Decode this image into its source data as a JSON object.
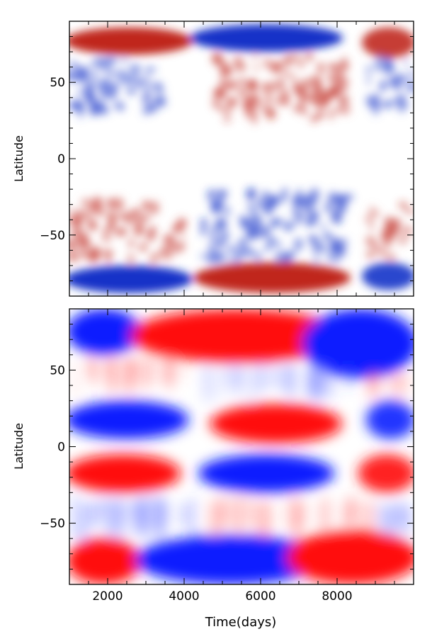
{
  "chart_data": [
    {
      "type": "heatmap",
      "title": "",
      "xlabel": "",
      "ylabel": "Latitude",
      "xlim": [
        1000,
        10000
      ],
      "ylim": [
        -90,
        90
      ],
      "xticks": [
        2000,
        4000,
        6000,
        8000
      ],
      "xtick_labels": [
        "",
        "",
        "",
        ""
      ],
      "yticks": [
        50,
        0,
        -50
      ],
      "ytick_labels": [
        "50",
        "0",
        "−50"
      ],
      "colors": {
        "positive": "#c0281e",
        "negative": "#1432c8",
        "zero": "#ffffff"
      },
      "color_meaning": "diverging red (positive) / blue (negative) field, white near zero",
      "regions": [
        {
          "sign": "+",
          "x": [
            1000,
            4100
          ],
          "lat": [
            68,
            86
          ],
          "strength": 1.0
        },
        {
          "sign": "-",
          "x": [
            4300,
            8000
          ],
          "lat": [
            70,
            88
          ],
          "strength": 1.0
        },
        {
          "sign": "+",
          "x": [
            8700,
            10000
          ],
          "lat": [
            66,
            86
          ],
          "strength": 0.9
        },
        {
          "sign": "-",
          "x": [
            1000,
            3500
          ],
          "lat": [
            30,
            66
          ],
          "strength": 0.6,
          "speckled": true
        },
        {
          "sign": "+",
          "x": [
            4800,
            8300
          ],
          "lat": [
            25,
            68
          ],
          "strength": 0.6,
          "speckled": true
        },
        {
          "sign": "-",
          "x": [
            8800,
            10000
          ],
          "lat": [
            30,
            66
          ],
          "strength": 0.5,
          "speckled": true
        },
        {
          "sign": "+",
          "x": [
            1000,
            4000
          ],
          "lat": [
            -66,
            -28
          ],
          "strength": 0.6,
          "speckled": true
        },
        {
          "sign": "-",
          "x": [
            4500,
            8300
          ],
          "lat": [
            -66,
            -22
          ],
          "strength": 0.6,
          "speckled": true
        },
        {
          "sign": "+",
          "x": [
            8800,
            10000
          ],
          "lat": [
            -66,
            -30
          ],
          "strength": 0.5,
          "speckled": true
        },
        {
          "sign": "-",
          "x": [
            1000,
            4100
          ],
          "lat": [
            -88,
            -70
          ],
          "strength": 1.0
        },
        {
          "sign": "+",
          "x": [
            4400,
            8200
          ],
          "lat": [
            -88,
            -68
          ],
          "strength": 1.0
        },
        {
          "sign": "-",
          "x": [
            8700,
            10000
          ],
          "lat": [
            -86,
            -68
          ],
          "strength": 0.9
        }
      ]
    },
    {
      "type": "heatmap",
      "title": "",
      "xlabel": "Time(days)",
      "ylabel": "Latitude",
      "xlim": [
        1000,
        10000
      ],
      "ylim": [
        -90,
        90
      ],
      "xticks": [
        2000,
        4000,
        6000,
        8000
      ],
      "xtick_labels": [
        "2000",
        "4000",
        "6000",
        "8000"
      ],
      "yticks": [
        50,
        0,
        -50
      ],
      "ytick_labels": [
        "50",
        "0",
        "−50"
      ],
      "colors": {
        "positive": "#ff0a0a",
        "negative": "#0a1eff",
        "zero": "#ffffff"
      },
      "color_meaning": "diverging red (positive) / blue (negative) field, white near zero",
      "regions": [
        {
          "sign": "-",
          "x": [
            1000,
            2800
          ],
          "lat": [
            60,
            90
          ],
          "strength": 1.0
        },
        {
          "sign": "+",
          "x": [
            2800,
            8000
          ],
          "lat": [
            55,
            90
          ],
          "strength": 1.0
        },
        {
          "sign": "-",
          "x": [
            7200,
            10000
          ],
          "lat": [
            45,
            90
          ],
          "strength": 1.0
        },
        {
          "sign": "+",
          "x": [
            1000,
            4200
          ],
          "lat": [
            35,
            60
          ],
          "strength": 0.45,
          "streaky": true
        },
        {
          "sign": "-",
          "x": [
            4300,
            8600
          ],
          "lat": [
            30,
            55
          ],
          "strength": 0.35,
          "streaky": true
        },
        {
          "sign": "+",
          "x": [
            8600,
            10000
          ],
          "lat": [
            30,
            50
          ],
          "strength": 0.3,
          "streaky": true
        },
        {
          "sign": "-",
          "x": [
            1000,
            4000
          ],
          "lat": [
            5,
            30
          ],
          "strength": 1.0
        },
        {
          "sign": "+",
          "x": [
            4800,
            8000
          ],
          "lat": [
            2,
            28
          ],
          "strength": 1.0
        },
        {
          "sign": "-",
          "x": [
            8800,
            10000
          ],
          "lat": [
            5,
            30
          ],
          "strength": 0.9
        },
        {
          "sign": "+",
          "x": [
            1000,
            3800
          ],
          "lat": [
            -30,
            -5
          ],
          "strength": 1.0
        },
        {
          "sign": "-",
          "x": [
            4500,
            7800
          ],
          "lat": [
            -30,
            -5
          ],
          "strength": 1.0
        },
        {
          "sign": "+",
          "x": [
            8600,
            10000
          ],
          "lat": [
            -30,
            -5
          ],
          "strength": 0.9
        },
        {
          "sign": "-",
          "x": [
            1000,
            4300
          ],
          "lat": [
            -60,
            -32
          ],
          "strength": 0.45,
          "streaky": true
        },
        {
          "sign": "+",
          "x": [
            4400,
            9000
          ],
          "lat": [
            -62,
            -32
          ],
          "strength": 0.45,
          "streaky": true
        },
        {
          "sign": "-",
          "x": [
            9000,
            10000
          ],
          "lat": [
            -60,
            -35
          ],
          "strength": 0.35,
          "streaky": true
        },
        {
          "sign": "+",
          "x": [
            1000,
            2800
          ],
          "lat": [
            -90,
            -60
          ],
          "strength": 1.0
        },
        {
          "sign": "-",
          "x": [
            2900,
            7500
          ],
          "lat": [
            -90,
            -58
          ],
          "strength": 1.0
        },
        {
          "sign": "+",
          "x": [
            6800,
            10000
          ],
          "lat": [
            -90,
            -55
          ],
          "strength": 1.0
        }
      ]
    }
  ]
}
